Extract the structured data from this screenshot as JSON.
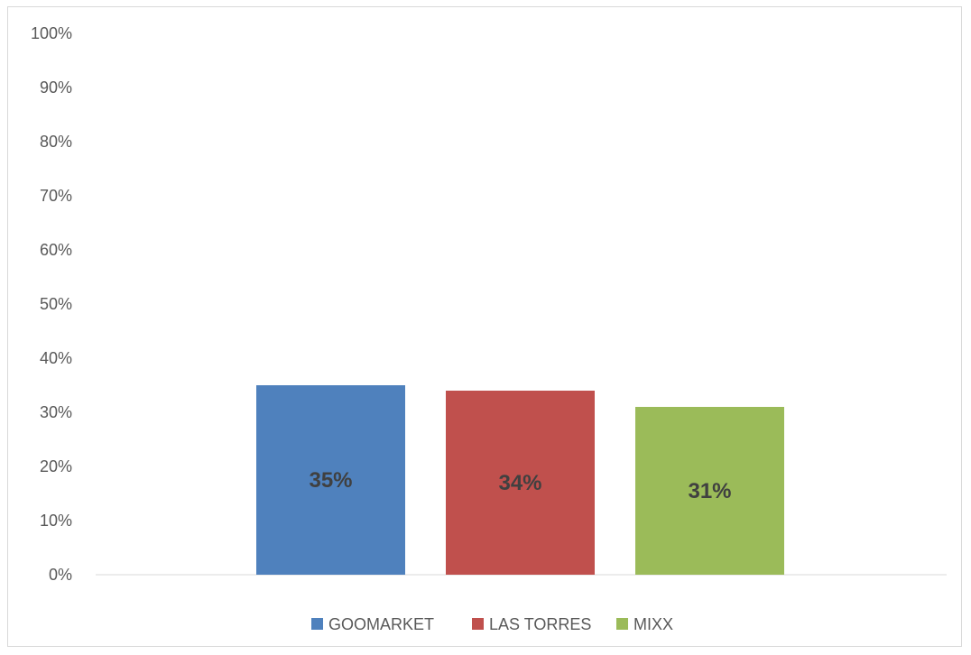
{
  "chart_data": {
    "type": "bar",
    "series": [
      {
        "name": "GOOMARKET",
        "value": 35,
        "label": "35%",
        "color": "#4f81bd"
      },
      {
        "name": "LAS TORRES",
        "value": 34,
        "label": "34%",
        "color": "#c0504d"
      },
      {
        "name": "MIXX",
        "value": 31,
        "label": "31%",
        "color": "#9bbb59"
      }
    ],
    "y_ticks": [
      "0%",
      "10%",
      "20%",
      "30%",
      "40%",
      "50%",
      "60%",
      "70%",
      "80%",
      "90%",
      "100%"
    ],
    "ylim": [
      0,
      100
    ],
    "grid": false,
    "legend_position": "bottom"
  }
}
